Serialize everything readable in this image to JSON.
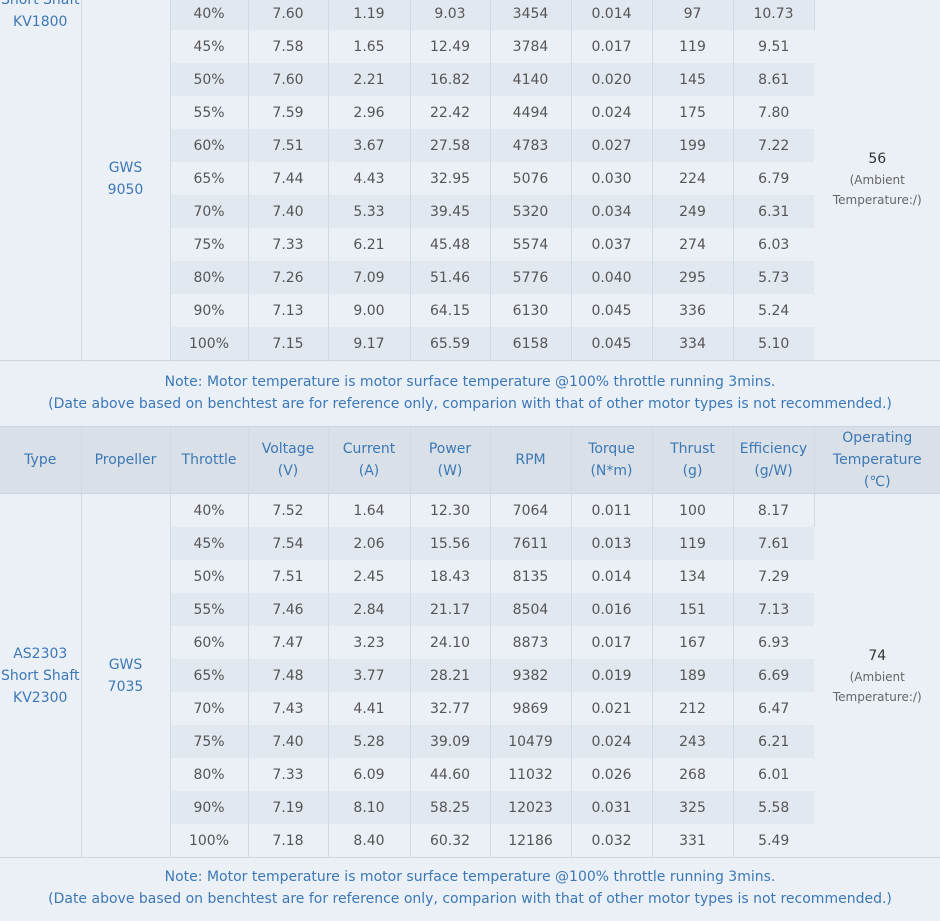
{
  "columns": [
    "Type",
    "Propeller",
    "Throttle",
    "Voltage\n(V)",
    "Current\n(A)",
    "Power\n(W)",
    "RPM",
    "Torque\n(N*m)",
    "Thrust\n(g)",
    "Efficiency\n(g/W)",
    "Operating\nTemperature\n(℃)"
  ],
  "tables": [
    {
      "type_lines": [
        "Short Shaft",
        "KV1800"
      ],
      "propeller_lines": [
        "GWS",
        "9050"
      ],
      "temperature": "56",
      "temperature_note": "(Ambient Temperature:/)",
      "rows": [
        [
          "40%",
          "7.60",
          "1.19",
          "9.03",
          "3454",
          "0.014",
          "97",
          "10.73"
        ],
        [
          "45%",
          "7.58",
          "1.65",
          "12.49",
          "3784",
          "0.017",
          "119",
          "9.51"
        ],
        [
          "50%",
          "7.60",
          "2.21",
          "16.82",
          "4140",
          "0.020",
          "145",
          "8.61"
        ],
        [
          "55%",
          "7.59",
          "2.96",
          "22.42",
          "4494",
          "0.024",
          "175",
          "7.80"
        ],
        [
          "60%",
          "7.51",
          "3.67",
          "27.58",
          "4783",
          "0.027",
          "199",
          "7.22"
        ],
        [
          "65%",
          "7.44",
          "4.43",
          "32.95",
          "5076",
          "0.030",
          "224",
          "6.79"
        ],
        [
          "70%",
          "7.40",
          "5.33",
          "39.45",
          "5320",
          "0.034",
          "249",
          "6.31"
        ],
        [
          "75%",
          "7.33",
          "6.21",
          "45.48",
          "5574",
          "0.037",
          "274",
          "6.03"
        ],
        [
          "80%",
          "7.26",
          "7.09",
          "51.46",
          "5776",
          "0.040",
          "295",
          "5.73"
        ],
        [
          "90%",
          "7.13",
          "9.00",
          "64.15",
          "6130",
          "0.045",
          "336",
          "5.24"
        ],
        [
          "100%",
          "7.15",
          "9.17",
          "65.59",
          "6158",
          "0.045",
          "334",
          "5.10"
        ]
      ],
      "note": [
        "Note: Motor temperature is motor surface temperature @100% throttle running 3mins.",
        "(Date above based on benchtest are for reference only, comparion with that of other motor types is not recommended.)"
      ]
    },
    {
      "type_lines": [
        "AS2303",
        "Short Shaft",
        "KV2300"
      ],
      "propeller_lines": [
        "GWS",
        "7035"
      ],
      "temperature": "74",
      "temperature_note": "(Ambient Temperature:/)",
      "rows": [
        [
          "40%",
          "7.52",
          "1.64",
          "12.30",
          "7064",
          "0.011",
          "100",
          "8.17"
        ],
        [
          "45%",
          "7.54",
          "2.06",
          "15.56",
          "7611",
          "0.013",
          "119",
          "7.61"
        ],
        [
          "50%",
          "7.51",
          "2.45",
          "18.43",
          "8135",
          "0.014",
          "134",
          "7.29"
        ],
        [
          "55%",
          "7.46",
          "2.84",
          "21.17",
          "8504",
          "0.016",
          "151",
          "7.13"
        ],
        [
          "60%",
          "7.47",
          "3.23",
          "24.10",
          "8873",
          "0.017",
          "167",
          "6.93"
        ],
        [
          "65%",
          "7.48",
          "3.77",
          "28.21",
          "9382",
          "0.019",
          "189",
          "6.69"
        ],
        [
          "70%",
          "7.43",
          "4.41",
          "32.77",
          "9869",
          "0.021",
          "212",
          "6.47"
        ],
        [
          "75%",
          "7.40",
          "5.28",
          "39.09",
          "10479",
          "0.024",
          "243",
          "6.21"
        ],
        [
          "80%",
          "7.33",
          "6.09",
          "44.60",
          "11032",
          "0.026",
          "268",
          "6.01"
        ],
        [
          "90%",
          "7.19",
          "8.10",
          "58.25",
          "12023",
          "0.031",
          "325",
          "5.58"
        ],
        [
          "100%",
          "7.18",
          "8.40",
          "60.32",
          "12186",
          "0.032",
          "331",
          "5.49"
        ]
      ],
      "note": [
        "Note: Motor temperature is motor surface temperature @100% throttle running 3mins.",
        "(Date above based on benchtest are for reference only, comparion with that of other motor types is not recommended.)"
      ]
    }
  ]
}
